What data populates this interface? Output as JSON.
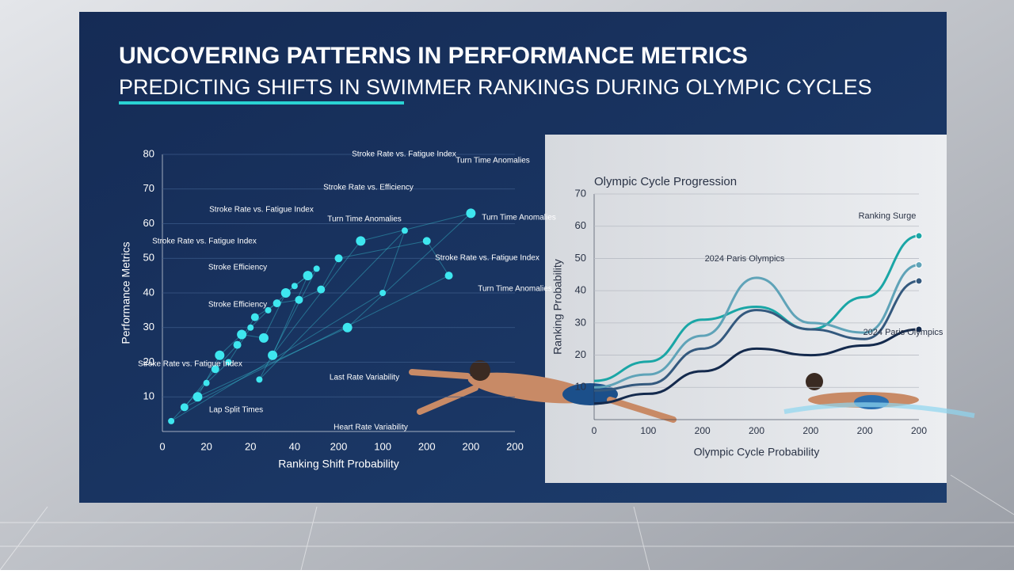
{
  "header": {
    "title": "UNCOVERING PATTERNS IN PERFORMANCE METRICS",
    "subtitle": "PREDICTING SHIFTS IN SWIMMER RANKINGS DURING OLYMPIC CYCLES"
  },
  "chart_data": [
    {
      "type": "scatter",
      "x_label": "Ranking Shift Probability",
      "y_label": "Performance Metrics",
      "categories": [
        "0",
        "20",
        "20",
        "40",
        "200",
        "100",
        "200",
        "200",
        "200"
      ],
      "xlim": [
        0,
        8
      ],
      "ylim": [
        0,
        80
      ],
      "yticks": [
        10,
        20,
        30,
        40,
        50,
        60,
        70,
        80
      ],
      "grid": true,
      "color": "#3ee6ef",
      "x": [
        0.2,
        0.5,
        0.8,
        1.0,
        1.2,
        1.3,
        1.5,
        1.7,
        1.8,
        2.0,
        2.1,
        2.3,
        2.4,
        2.6,
        2.8,
        3.0,
        3.1,
        3.3,
        3.5,
        3.6,
        2.5,
        2.2,
        4.0,
        4.5,
        5.5,
        6.0,
        7.0,
        5.0,
        6.5,
        4.2
      ],
      "values": [
        3,
        7,
        10,
        14,
        18,
        22,
        20,
        25,
        28,
        30,
        33,
        27,
        35,
        37,
        40,
        42,
        38,
        45,
        47,
        41,
        22,
        15,
        50,
        55,
        58,
        55,
        63,
        40,
        45,
        30
      ],
      "annotations": [
        "Stroke Rate vs. Fatigue Index",
        "Turn Time Anomalies",
        "Stroke Rate vs. Efficiency",
        "Stroke Rate vs. Fatigue Index",
        "Turn Time Anomalies",
        "Turn Time Anomalies",
        "Stroke Rate vs. Fatigue Index",
        "Stroke Efficiency",
        "Stroke Rate vs. Fatigue Index",
        "Turn Time Anomalies",
        "Stroke Efficiency",
        "Stroke Rate vs. Fatigue Index",
        "Last Rate Variability",
        "Lap Split Times",
        "Heart Rate Variability"
      ]
    },
    {
      "type": "line",
      "title": "Olympic Cycle Progression",
      "x_label": "Olympic Cycle Probability",
      "y_label": "Ranking Probability",
      "categories": [
        "0",
        "100",
        "200",
        "200",
        "200",
        "200",
        "200"
      ],
      "ylim": [
        0,
        70
      ],
      "yticks": [
        10,
        20,
        30,
        40,
        50,
        60,
        70
      ],
      "grid": true,
      "series": [
        {
          "color": "#1aa6a6",
          "values": [
            12,
            18,
            31,
            35,
            28,
            38,
            57
          ]
        },
        {
          "color": "#5fa3b8",
          "values": [
            10,
            14,
            26,
            44,
            30,
            27,
            48
          ]
        },
        {
          "color": "#34597e",
          "values": [
            9,
            11,
            22,
            34,
            28,
            25,
            43
          ]
        },
        {
          "color": "#142a4d",
          "values": [
            5,
            8,
            15,
            22,
            20,
            23,
            28
          ]
        }
      ],
      "annotations": [
        "Ranking Surge",
        "2024 Paris Olympics",
        "2024 Paris Olympics"
      ]
    }
  ]
}
